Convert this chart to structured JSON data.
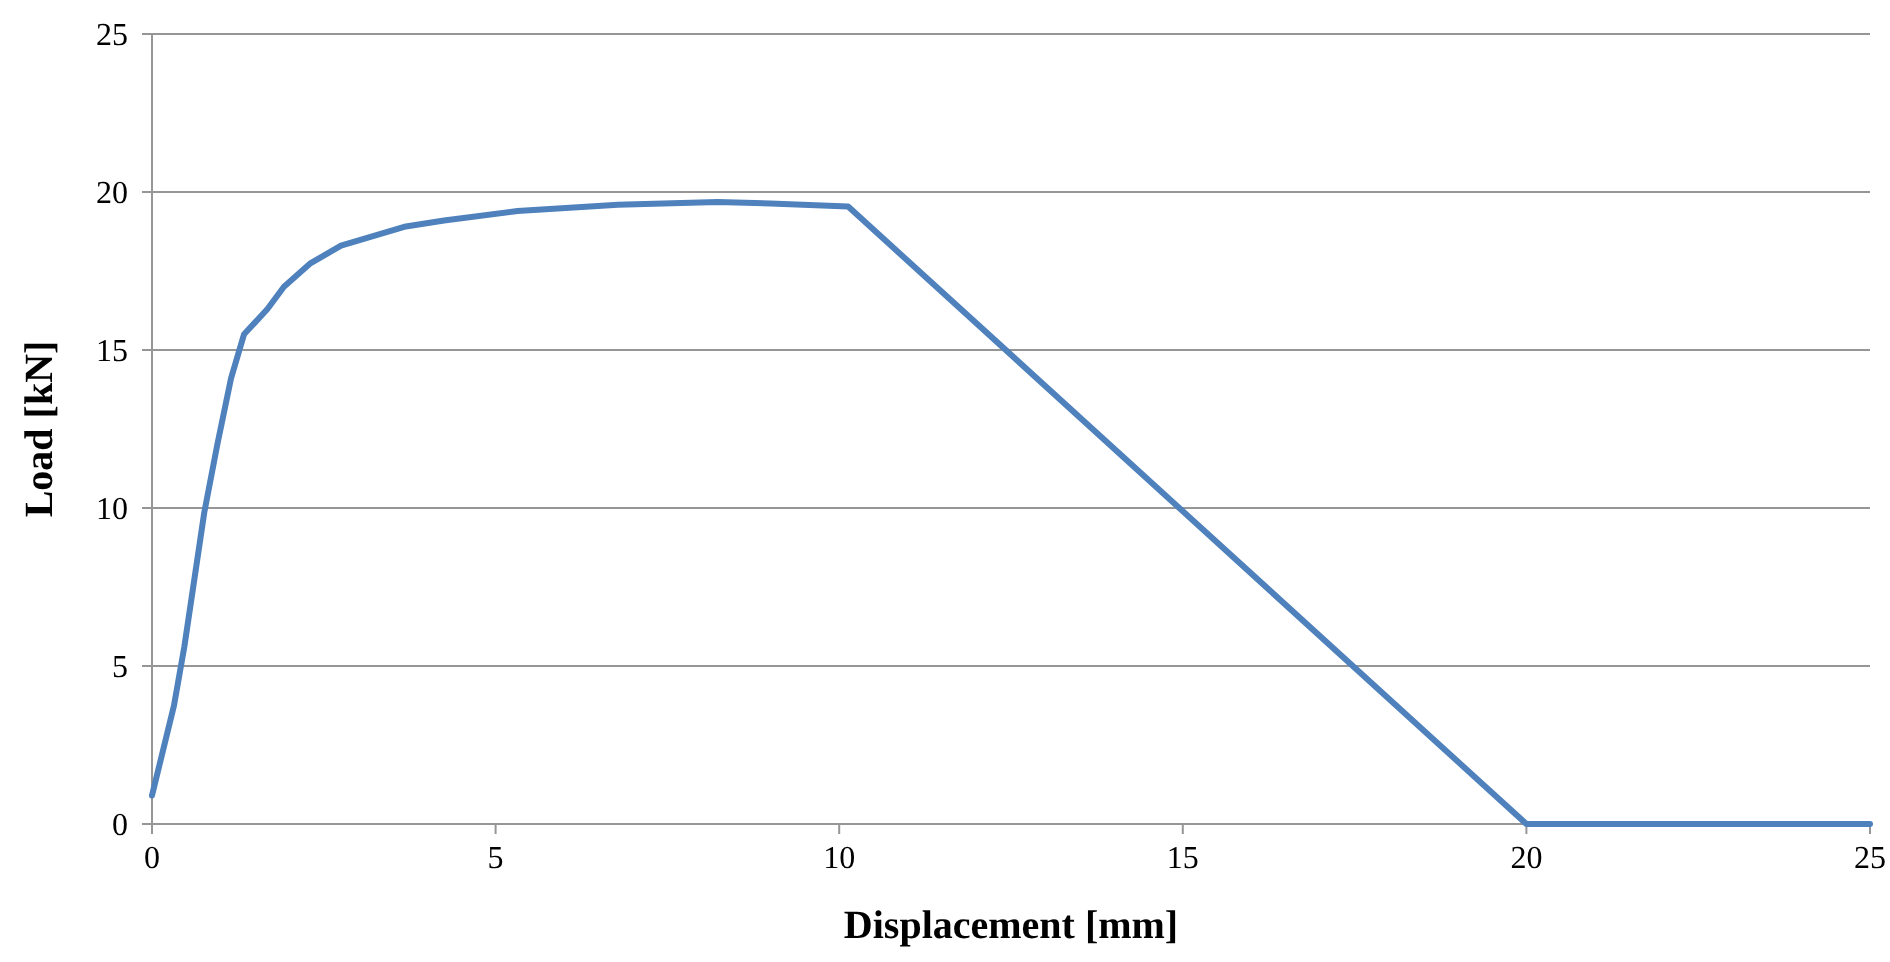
{
  "chart_data": {
    "type": "line",
    "xlabel": "Displacement [mm]",
    "ylabel": "Load [kN]",
    "xlim": [
      0,
      25
    ],
    "ylim": [
      0,
      25
    ],
    "xticks": [
      0,
      5,
      10,
      15,
      20,
      25
    ],
    "yticks": [
      0,
      5,
      10,
      15,
      20,
      25
    ],
    "grid": "y",
    "marker": "none",
    "line_style": "solid",
    "series": [
      {
        "color": "#4f81bd",
        "x": [
          0,
          0.32,
          0.47,
          0.76,
          0.95,
          1.15,
          1.34,
          1.49,
          1.68,
          1.92,
          2.31,
          2.75,
          3.67,
          4.25,
          5.32,
          6.78,
          8.23,
          9.0,
          10.13,
          20,
          25
        ],
        "values": [
          0.9,
          3.75,
          5.6,
          9.85,
          12,
          14.1,
          15.5,
          15.85,
          16.3,
          17,
          17.75,
          18.3,
          18.9,
          19.1,
          19.4,
          19.6,
          19.68,
          19.64,
          19.54,
          0,
          0
        ]
      }
    ]
  }
}
